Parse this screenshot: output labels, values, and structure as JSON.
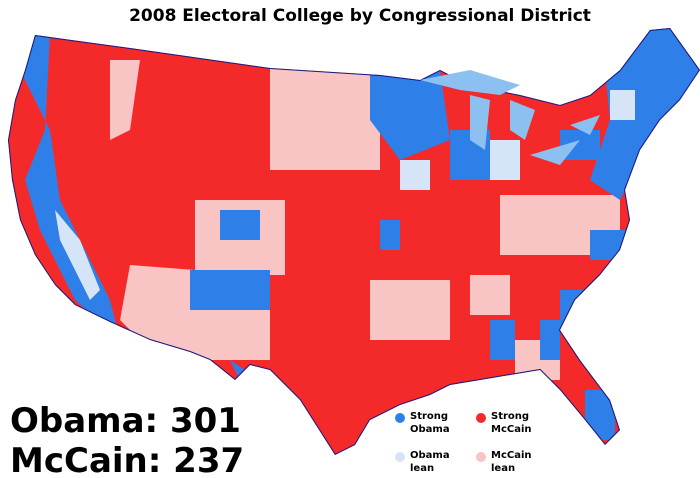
{
  "title": "2008 Electoral College by Congressional District",
  "totals": {
    "obama": "Obama: 301",
    "mccain": "McCain: 237"
  },
  "legend": [
    {
      "lines": [
        "Strong",
        "Obama"
      ],
      "color": "#2f7fe8"
    },
    {
      "lines": [
        "Strong",
        "McCain"
      ],
      "color": "#f42a2a"
    },
    {
      "lines": [
        "Obama",
        "lean"
      ],
      "color": "#d6e4f7"
    },
    {
      "lines": [
        "McCain",
        "lean"
      ],
      "color": "#f9c4c4"
    }
  ]
}
